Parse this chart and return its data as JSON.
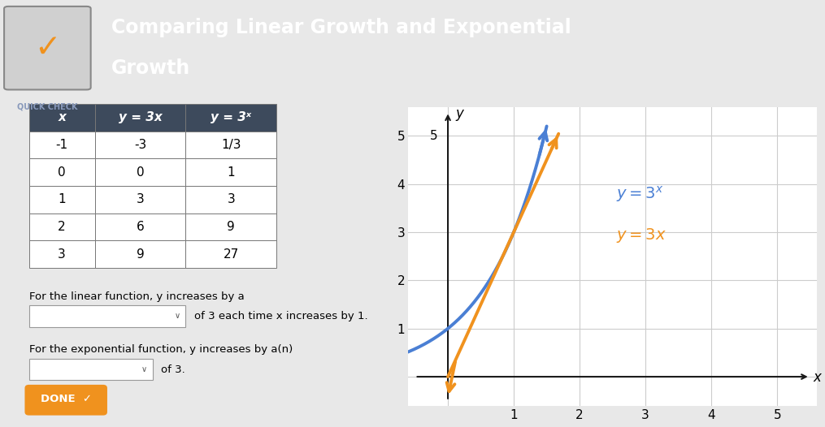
{
  "title_main": "Comparing Linear Growth and Exponential",
  "title_sub": "Growth",
  "quick_check_label": "QUICK CHECK",
  "header_bg": "#3d4a5c",
  "header_text_color": "#ffffff",
  "table_header_bg": "#3d4a5c",
  "body_bg": "#e8e8e8",
  "table_x_vals": [
    -1,
    0,
    1,
    2,
    3
  ],
  "table_y_linear": [
    "-3",
    "0",
    "3",
    "6",
    "9"
  ],
  "table_y_exp": [
    "1/3",
    "1",
    "3",
    "9",
    "27"
  ],
  "col_headers": [
    "x",
    "y = 3x",
    "y = 3x"
  ],
  "linear_color": "#f0921e",
  "exp_color": "#4a7fd4",
  "linear_label": "y = 3x",
  "exp_label": "y = 3x",
  "grid_color": "#cccccc",
  "axis_color": "#1a1a1a",
  "text_below1": "For the linear function, y increases by a",
  "text_below2": "of 3 each time x increases by 1.",
  "text_below3": "For the exponential function, y increases by a(n)",
  "text_below4": "of 3.",
  "done_label": "DONE",
  "done_bg": "#f0921e",
  "check_bg": "#f5f5f5"
}
